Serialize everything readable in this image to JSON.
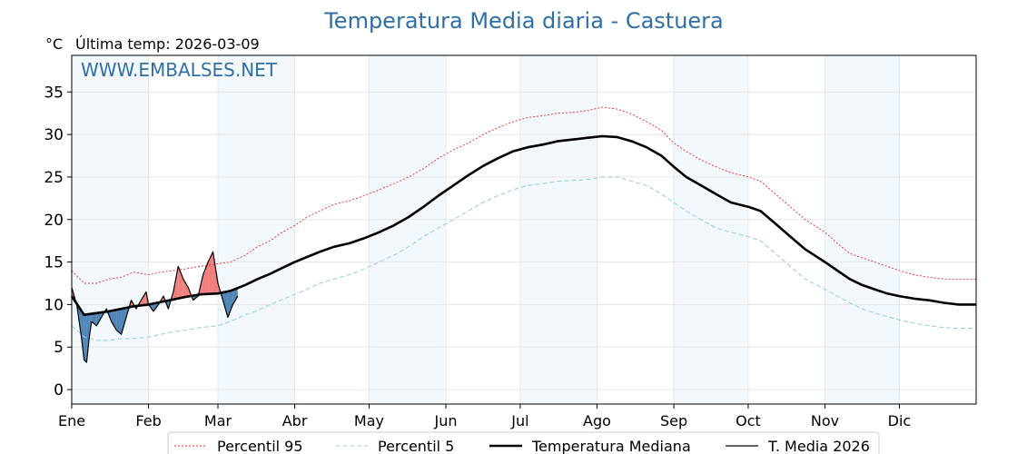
{
  "chart_data": {
    "type": "line",
    "title": "Temperatura Media diaria - Castuera",
    "unit_label": "°C",
    "last_temp_label": "Última temp: 2026-03-09",
    "watermark": "WWW.EMBALSES.NET",
    "xlabel": "",
    "ylabel": "",
    "x_ticks": [
      "Ene",
      "Feb",
      "Mar",
      "Abr",
      "May",
      "Jun",
      "Jul",
      "Ago",
      "Sep",
      "Oct",
      "Nov",
      "Dic"
    ],
    "x_tick_days": [
      0,
      31,
      59,
      90,
      120,
      151,
      181,
      212,
      243,
      273,
      304,
      334
    ],
    "xlim": [
      0,
      365
    ],
    "y_ticks": [
      0,
      5,
      10,
      15,
      20,
      25,
      30,
      35
    ],
    "ylim": [
      -1.7,
      39.3
    ],
    "grid": true,
    "legend_position": "bottom",
    "colors": {
      "title": "#2f6fa7",
      "p95": "#e8292b",
      "p5": "#9ccfe3",
      "median": "#000000",
      "current": "#000000",
      "above_fill": "#f08080",
      "below_fill": "#4f86b8",
      "band": "#f3f8fc"
    },
    "series": [
      {
        "name": "Percentil 95",
        "style": "dotted",
        "x": [
          0,
          5,
          10,
          15,
          20,
          25,
          31,
          36,
          41,
          46,
          52,
          59,
          64,
          70,
          75,
          80,
          85,
          90,
          95,
          100,
          106,
          112,
          118,
          124,
          130,
          136,
          142,
          148,
          154,
          160,
          166,
          172,
          178,
          184,
          190,
          196,
          202,
          208,
          214,
          220,
          226,
          232,
          238,
          243,
          248,
          254,
          260,
          266,
          273,
          278,
          284,
          290,
          296,
          304,
          309,
          314,
          319,
          324,
          329,
          334,
          340,
          346,
          352,
          358,
          365
        ],
        "values": [
          14,
          12.5,
          12.5,
          13,
          13.2,
          13.8,
          13.5,
          13.8,
          14,
          14.2,
          14.5,
          14.8,
          15,
          15.8,
          16.8,
          17.5,
          18.5,
          19.3,
          20.3,
          21,
          21.8,
          22.2,
          22.8,
          23.5,
          24.2,
          25,
          26,
          27.2,
          28.2,
          29,
          30,
          30.8,
          31.5,
          32,
          32.2,
          32.5,
          32.6,
          32.8,
          33.2,
          33,
          32.4,
          31.5,
          30.5,
          29,
          28,
          27,
          26.2,
          25.5,
          25,
          24.5,
          23,
          21.5,
          20,
          18.5,
          17.2,
          16,
          15.5,
          15,
          14.5,
          14,
          13.5,
          13.2,
          13,
          13,
          13
        ]
      },
      {
        "name": "Percentil 5",
        "style": "dashed",
        "x": [
          0,
          5,
          10,
          15,
          20,
          25,
          31,
          36,
          41,
          46,
          52,
          59,
          64,
          70,
          75,
          80,
          85,
          90,
          95,
          100,
          106,
          112,
          118,
          124,
          130,
          136,
          142,
          148,
          154,
          160,
          166,
          172,
          178,
          184,
          190,
          196,
          202,
          208,
          214,
          220,
          226,
          232,
          238,
          243,
          248,
          254,
          260,
          266,
          273,
          278,
          284,
          290,
          296,
          304,
          309,
          314,
          319,
          324,
          329,
          334,
          340,
          346,
          352,
          358,
          365
        ],
        "values": [
          7.5,
          6.2,
          5.8,
          5.8,
          6,
          6,
          6.2,
          6.5,
          6.8,
          7,
          7.3,
          7.5,
          8,
          8.8,
          9.3,
          10,
          10.6,
          11.2,
          11.8,
          12.5,
          13,
          13.5,
          14.2,
          15,
          15.8,
          16.8,
          18,
          19,
          20,
          21,
          22,
          22.8,
          23.5,
          24,
          24.2,
          24.5,
          24.6,
          24.7,
          25,
          25,
          24.5,
          24,
          23,
          22,
          21,
          20,
          19,
          18.5,
          18,
          17.5,
          16,
          14.5,
          13,
          11.8,
          11,
          10.2,
          9.5,
          9,
          8.6,
          8.2,
          7.8,
          7.5,
          7.3,
          7.2,
          7.2
        ]
      },
      {
        "name": "Temperatura Mediana",
        "style": "solid-thick",
        "x": [
          0,
          5,
          10,
          15,
          20,
          25,
          31,
          36,
          41,
          46,
          52,
          59,
          64,
          70,
          75,
          80,
          85,
          90,
          95,
          100,
          106,
          112,
          118,
          124,
          130,
          136,
          142,
          148,
          154,
          160,
          166,
          172,
          178,
          184,
          190,
          196,
          202,
          208,
          214,
          220,
          226,
          232,
          238,
          243,
          248,
          254,
          260,
          266,
          273,
          278,
          284,
          290,
          296,
          304,
          309,
          314,
          319,
          324,
          329,
          334,
          340,
          346,
          352,
          358,
          365
        ],
        "values": [
          11,
          8.8,
          9,
          9.2,
          9.5,
          9.8,
          10,
          10.3,
          10.6,
          10.9,
          11.2,
          11.3,
          11.6,
          12.3,
          13,
          13.6,
          14.3,
          15,
          15.6,
          16.2,
          16.8,
          17.2,
          17.8,
          18.5,
          19.3,
          20.3,
          21.5,
          22.8,
          24,
          25.2,
          26.3,
          27.2,
          28,
          28.5,
          28.8,
          29.2,
          29.4,
          29.6,
          29.8,
          29.7,
          29.2,
          28.5,
          27.5,
          26.2,
          25,
          24,
          23,
          22,
          21.5,
          21,
          19.5,
          18,
          16.5,
          15,
          14,
          13,
          12.3,
          11.8,
          11.3,
          11,
          10.7,
          10.5,
          10.2,
          10,
          10
        ]
      },
      {
        "name": "T. Media 2026",
        "style": "solid-thin",
        "x": [
          0,
          2,
          4,
          5,
          6,
          7,
          8,
          10,
          12,
          14,
          16,
          18,
          20,
          22,
          24,
          26,
          28,
          30,
          31,
          33,
          35,
          37,
          39,
          41,
          43,
          45,
          47,
          49,
          51,
          53,
          55,
          57,
          59,
          61,
          63,
          65,
          67
        ],
        "values": [
          12,
          10,
          6,
          3.5,
          3.2,
          6,
          8,
          7.5,
          8.5,
          9.5,
          8,
          7,
          6.5,
          8.5,
          10.5,
          9.5,
          10.5,
          11.5,
          10,
          9.2,
          10,
          11,
          9.5,
          11.5,
          14.5,
          13,
          12,
          10.5,
          11,
          13.5,
          15,
          16.2,
          12.5,
          10.5,
          8.5,
          10,
          11
        ]
      }
    ]
  }
}
